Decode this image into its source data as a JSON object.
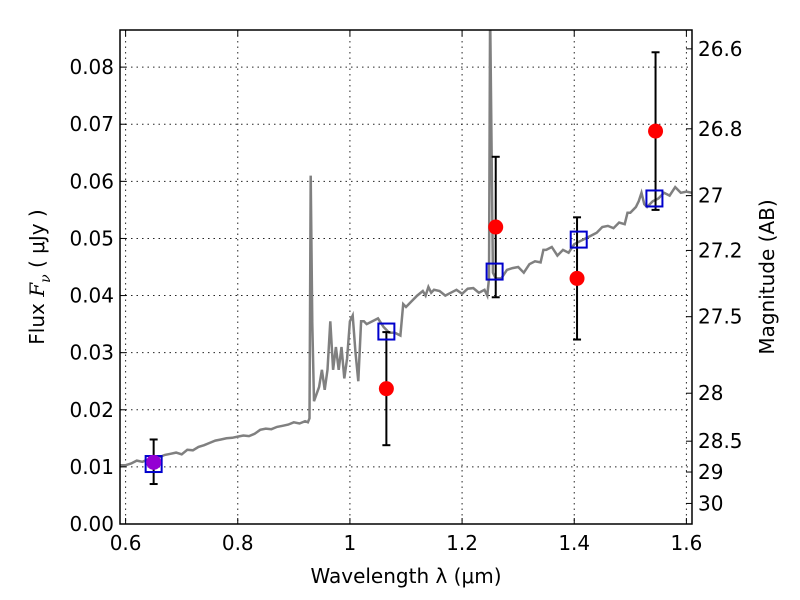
{
  "chart_data": {
    "type": "scatter",
    "xlabel": "Wavelength  λ (μm)",
    "ylabel": "Flux  F_ν  ( μJy )",
    "ylabel_parts": {
      "prefix": "Flux  ",
      "symbol": "F",
      "subscript": "ν",
      "suffix": "  ( μJy )"
    },
    "y2label": "Magnitude (AB)",
    "xlim": [
      0.59,
      1.61
    ],
    "ylim": [
      0.0,
      0.0865
    ],
    "grid": true,
    "x_ticks": [
      0.6,
      0.8,
      1.0,
      1.2,
      1.4,
      1.6
    ],
    "x_tick_labels": [
      "0.6",
      "0.8",
      "1",
      "1.2",
      "1.4",
      "1.6"
    ],
    "y_ticks": [
      0.0,
      0.01,
      0.02,
      0.03,
      0.04,
      0.05,
      0.06,
      0.07,
      0.08
    ],
    "y_tick_labels": [
      "0.00",
      "0.01",
      "0.02",
      "0.03",
      "0.04",
      "0.05",
      "0.06",
      "0.07",
      "0.08"
    ],
    "y2_ticks": [
      {
        "label": "26.6",
        "flux": 0.0832
      },
      {
        "label": "26.8",
        "flux": 0.0692
      },
      {
        "label": "27",
        "flux": 0.0575
      },
      {
        "label": "27.2",
        "flux": 0.0479
      },
      {
        "label": "27.5",
        "flux": 0.0363
      },
      {
        "label": "28",
        "flux": 0.0229
      },
      {
        "label": "28.5",
        "flux": 0.0145
      },
      {
        "label": "29",
        "flux": 0.0091
      },
      {
        "label": "30",
        "flux": 0.0036
      }
    ],
    "series": [
      {
        "type": "line",
        "color": "#808080",
        "points": [
          [
            0.59,
            0.0103
          ],
          [
            0.6,
            0.0103
          ],
          [
            0.61,
            0.0106
          ],
          [
            0.62,
            0.0111
          ],
          [
            0.63,
            0.0109
          ],
          [
            0.64,
            0.0113
          ],
          [
            0.65,
            0.0115
          ],
          [
            0.66,
            0.0117
          ],
          [
            0.67,
            0.0121
          ],
          [
            0.68,
            0.0123
          ],
          [
            0.69,
            0.0125
          ],
          [
            0.7,
            0.0122
          ],
          [
            0.71,
            0.013
          ],
          [
            0.72,
            0.0129
          ],
          [
            0.73,
            0.0135
          ],
          [
            0.74,
            0.0138
          ],
          [
            0.75,
            0.0142
          ],
          [
            0.76,
            0.0146
          ],
          [
            0.77,
            0.0148
          ],
          [
            0.78,
            0.015
          ],
          [
            0.79,
            0.0151
          ],
          [
            0.8,
            0.0153
          ],
          [
            0.81,
            0.0155
          ],
          [
            0.82,
            0.0154
          ],
          [
            0.83,
            0.0158
          ],
          [
            0.84,
            0.0165
          ],
          [
            0.85,
            0.0167
          ],
          [
            0.86,
            0.0166
          ],
          [
            0.87,
            0.017
          ],
          [
            0.88,
            0.0172
          ],
          [
            0.89,
            0.0174
          ],
          [
            0.9,
            0.0178
          ],
          [
            0.91,
            0.0176
          ],
          [
            0.92,
            0.018
          ],
          [
            0.925,
            0.0178
          ],
          [
            0.928,
            0.0185
          ],
          [
            0.93,
            0.061
          ],
          [
            0.933,
            0.035
          ],
          [
            0.936,
            0.0215
          ],
          [
            0.945,
            0.024
          ],
          [
            0.95,
            0.027
          ],
          [
            0.955,
            0.0235
          ],
          [
            0.96,
            0.027
          ],
          [
            0.965,
            0.0355
          ],
          [
            0.97,
            0.027
          ],
          [
            0.975,
            0.031
          ],
          [
            0.98,
            0.027
          ],
          [
            0.985,
            0.031
          ],
          [
            0.99,
            0.0255
          ],
          [
            0.995,
            0.029
          ],
          [
            1.0,
            0.0355
          ],
          [
            1.005,
            0.0365
          ],
          [
            1.01,
            0.03
          ],
          [
            1.015,
            0.025
          ],
          [
            1.02,
            0.0355
          ],
          [
            1.025,
            0.0355
          ],
          [
            1.03,
            0.035
          ],
          [
            1.04,
            0.0355
          ],
          [
            1.05,
            0.036
          ],
          [
            1.06,
            0.0345
          ],
          [
            1.07,
            0.0335
          ],
          [
            1.08,
            0.0335
          ],
          [
            1.09,
            0.033
          ],
          [
            1.095,
            0.0385
          ],
          [
            1.1,
            0.038
          ],
          [
            1.105,
            0.0385
          ],
          [
            1.11,
            0.039
          ],
          [
            1.12,
            0.04
          ],
          [
            1.13,
            0.0408
          ],
          [
            1.135,
            0.04
          ],
          [
            1.14,
            0.0415
          ],
          [
            1.145,
            0.0405
          ],
          [
            1.15,
            0.041
          ],
          [
            1.16,
            0.0408
          ],
          [
            1.17,
            0.04
          ],
          [
            1.18,
            0.0405
          ],
          [
            1.19,
            0.041
          ],
          [
            1.2,
            0.0403
          ],
          [
            1.21,
            0.0412
          ],
          [
            1.22,
            0.0413
          ],
          [
            1.23,
            0.0405
          ],
          [
            1.24,
            0.041
          ],
          [
            1.245,
            0.04
          ],
          [
            1.248,
            0.043
          ],
          [
            1.25,
            0.09
          ],
          [
            1.252,
            0.072
          ],
          [
            1.255,
            0.044
          ],
          [
            1.26,
            0.043
          ],
          [
            1.27,
            0.043
          ],
          [
            1.28,
            0.0445
          ],
          [
            1.29,
            0.0448
          ],
          [
            1.3,
            0.045
          ],
          [
            1.31,
            0.044
          ],
          [
            1.32,
            0.0455
          ],
          [
            1.33,
            0.046
          ],
          [
            1.34,
            0.0458
          ],
          [
            1.345,
            0.048
          ],
          [
            1.35,
            0.048
          ],
          [
            1.36,
            0.0485
          ],
          [
            1.37,
            0.047
          ],
          [
            1.38,
            0.048
          ],
          [
            1.39,
            0.0475
          ],
          [
            1.4,
            0.049
          ],
          [
            1.41,
            0.0495
          ],
          [
            1.42,
            0.05
          ],
          [
            1.43,
            0.0505
          ],
          [
            1.44,
            0.051
          ],
          [
            1.45,
            0.052
          ],
          [
            1.46,
            0.0522
          ],
          [
            1.47,
            0.0518
          ],
          [
            1.48,
            0.0528
          ],
          [
            1.49,
            0.0525
          ],
          [
            1.495,
            0.0545
          ],
          [
            1.5,
            0.0545
          ],
          [
            1.51,
            0.0555
          ],
          [
            1.515,
            0.0565
          ],
          [
            1.52,
            0.058
          ],
          [
            1.525,
            0.056
          ],
          [
            1.53,
            0.0555
          ],
          [
            1.54,
            0.0565
          ],
          [
            1.55,
            0.057
          ],
          [
            1.56,
            0.058
          ],
          [
            1.57,
            0.0575
          ],
          [
            1.58,
            0.059
          ],
          [
            1.59,
            0.058
          ],
          [
            1.6,
            0.0582
          ],
          [
            1.61,
            0.058
          ]
        ]
      },
      {
        "type": "scatter_errorbar",
        "marker": "circle",
        "color": "#ff0000",
        "points": [
          {
            "x": 0.65,
            "y": 0.0108,
            "yerr": [
              0.0038,
              0.004
            ],
            "color": "#9400d3"
          },
          {
            "x": 1.065,
            "y": 0.0237,
            "yerr": [
              0.0099,
              0.0099
            ]
          },
          {
            "x": 1.26,
            "y": 0.052,
            "yerr": [
              0.0123,
              0.0123
            ]
          },
          {
            "x": 1.405,
            "y": 0.043,
            "yerr": [
              0.0107,
              0.0107
            ]
          },
          {
            "x": 1.545,
            "y": 0.0688,
            "yerr": [
              0.0138,
              0.0138
            ]
          }
        ]
      },
      {
        "type": "scatter",
        "marker": "open-square",
        "color": "#0000cc",
        "points": [
          {
            "x": 0.65,
            "y": 0.0105
          },
          {
            "x": 1.065,
            "y": 0.0337
          },
          {
            "x": 1.258,
            "y": 0.0442
          },
          {
            "x": 1.408,
            "y": 0.0498
          },
          {
            "x": 1.543,
            "y": 0.057
          }
        ]
      }
    ]
  }
}
